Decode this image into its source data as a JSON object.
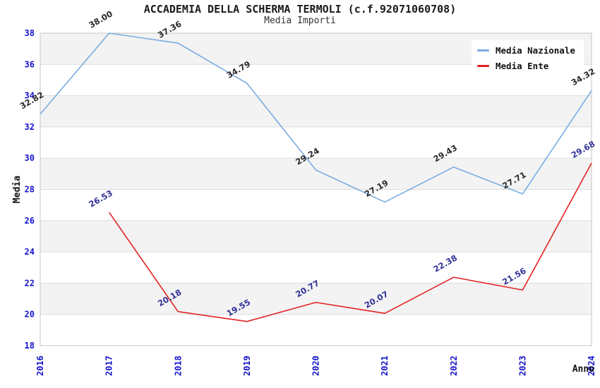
{
  "window": {
    "background": "#ffffff"
  },
  "chart_data": {
    "type": "line",
    "title": "ACCADEMIA DELLA SCHERMA TERMOLI (c.f.92071060708)",
    "subtitle": "Media Importi",
    "xlabel": "Anno",
    "ylabel": "Media",
    "categories": [
      "2016",
      "2017",
      "2018",
      "2019",
      "2020",
      "2021",
      "2022",
      "2023",
      "2024"
    ],
    "ylim": [
      18,
      38
    ],
    "ytick_step": 2,
    "grid": true,
    "alternating_bands": true,
    "legend_position": "top-right",
    "series": [
      {
        "name": "Media Nazionale",
        "color": "#79ade0",
        "label_color": "#2a2a2e",
        "values": [
          32.82,
          38.0,
          37.36,
          34.79,
          29.24,
          27.19,
          29.43,
          27.71,
          34.32
        ]
      },
      {
        "name": "Media Ente",
        "color": "#e22222",
        "label_color": "#333399",
        "values": [
          null,
          26.53,
          20.18,
          19.55,
          20.77,
          20.07,
          22.38,
          21.56,
          29.68
        ]
      }
    ],
    "styles": {
      "band_color": "#f3f3f3",
      "grid_color": "#dcdcdc",
      "frame_color": "#c4c4c4",
      "tick_color": "#1414cc"
    }
  }
}
